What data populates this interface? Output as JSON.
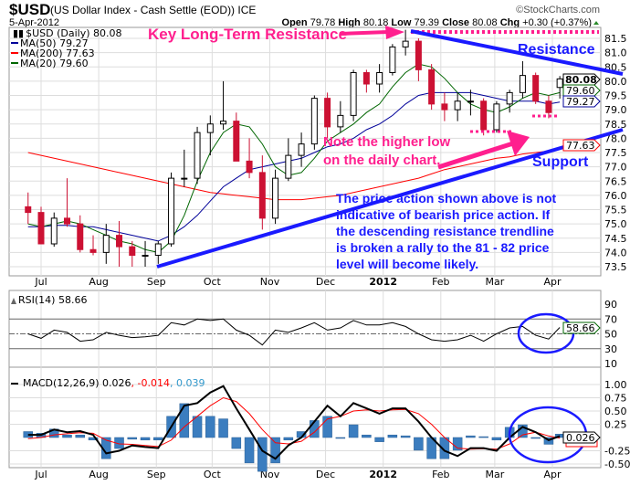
{
  "header": {
    "symbol": "$USD",
    "name": "(US Dollar Index - Cash Settle (EOD)) ICE",
    "date": "5-Apr-2012",
    "watermark": "©StockCharts.com",
    "open_label": "Open",
    "open": "79.78",
    "high_label": "High",
    "high": "80.18",
    "low_label": "Low",
    "low": "79.39",
    "close_label": "Close",
    "close": "80.08",
    "chg_label": "Chg",
    "chg": "+0.30 (+0.37%)"
  },
  "legend": {
    "price": "$USD (Daily) 80.08",
    "ma50": "MA(50) 79.27",
    "ma200": "MA(200) 77.63",
    "ma20": "MA(20) 79.60",
    "rsi": "RSI(14) 58.66",
    "macd_main": "MACD(12,26,9) 0.026",
    "macd_signal": ", -0.014",
    "macd_hist": ", 0.039"
  },
  "value_tags": {
    "price": "80.08",
    "ma20": "79.60",
    "ma50": "79.27",
    "ma200": "77.63",
    "rsi": "58.66",
    "macd": "0.026"
  },
  "annotations": {
    "key_resistance": "Key Long-Term Resistance",
    "resistance": "Resistance",
    "support": "Support",
    "higher_low_1": "Note the higher low",
    "higher_low_2": "on the daily chart.",
    "paragraph": [
      "The price action shown above is not",
      "indicative of bearish price action. If",
      "the descending resistance trendline",
      "is broken a rally to the 81 - 82 price",
      "level will become likely."
    ]
  },
  "colors": {
    "up": "#000000",
    "down": "#cc1133",
    "ma50": "#000099",
    "ma200": "#ff0000",
    "ma20": "#006600",
    "hist": "#3b7dbf",
    "annotation_pink": "#ff1f8e",
    "annotation_blue": "#1a1aff"
  },
  "chart_data": {
    "type": "candlestick",
    "x_axis": {
      "ticks": [
        "Jul",
        "Aug",
        "Sep",
        "Oct",
        "Nov",
        "Dec",
        "2012",
        "Feb",
        "Mar",
        "Apr"
      ],
      "range": [
        "2011-06-14",
        "2012-04-05"
      ]
    },
    "price_axis": {
      "ticks": [
        "81.5",
        "81.0",
        "80.5",
        "80.0",
        "79.5",
        "79.0",
        "78.5",
        "78.0",
        "77.5",
        "77.0",
        "76.5",
        "76.0",
        "75.5",
        "75.0",
        "74.5",
        "74.0",
        "73.5"
      ],
      "range": [
        73.3,
        81.9
      ]
    },
    "rsi_axis": {
      "ticks": [
        "90",
        "70",
        "50",
        "30",
        "10"
      ],
      "range": [
        0,
        100
      ]
    },
    "macd_axis": {
      "ticks": [
        "1.00",
        "0.75",
        "0.50",
        "0.25",
        "-0.25",
        "-0.50"
      ],
      "range": [
        -0.6,
        1.2
      ]
    },
    "grid": true,
    "ohlc": [
      [
        "2011-06-24",
        75.6,
        76.1,
        75.0,
        75.4
      ],
      [
        "2011-07-01",
        75.4,
        75.6,
        74.3,
        74.3
      ],
      [
        "2011-07-08",
        74.3,
        75.4,
        74.2,
        75.2
      ],
      [
        "2011-07-15",
        75.2,
        76.6,
        74.9,
        75.0
      ],
      [
        "2011-07-22",
        75.0,
        75.3,
        74.0,
        74.1
      ],
      [
        "2011-07-29",
        74.1,
        74.6,
        73.9,
        74.0
      ],
      [
        "2011-08-05",
        74.0,
        75.0,
        73.6,
        74.6
      ],
      [
        "2011-08-12",
        74.6,
        75.1,
        73.5,
        74.2
      ],
      [
        "2011-08-19",
        74.2,
        74.4,
        73.5,
        73.9
      ],
      [
        "2011-08-26",
        73.9,
        74.4,
        73.5,
        73.9
      ],
      [
        "2011-09-02",
        73.9,
        74.4,
        73.6,
        74.3
      ],
      [
        "2011-09-09",
        74.3,
        76.8,
        74.2,
        76.6
      ],
      [
        "2011-09-16",
        76.6,
        77.6,
        76.3,
        76.6
      ],
      [
        "2011-09-23",
        76.6,
        78.4,
        76.4,
        78.2
      ],
      [
        "2011-09-30",
        78.2,
        78.8,
        77.4,
        78.5
      ],
      [
        "2011-10-07",
        78.5,
        80.0,
        78.3,
        78.6
      ],
      [
        "2011-10-14",
        78.6,
        78.9,
        77.2,
        77.2
      ],
      [
        "2011-10-21",
        77.2,
        78.0,
        76.6,
        76.8
      ],
      [
        "2011-10-28",
        76.8,
        77.4,
        74.8,
        75.2
      ],
      [
        "2011-11-04",
        75.2,
        76.9,
        75.0,
        76.6
      ],
      [
        "2011-11-11",
        76.6,
        78.0,
        76.5,
        77.4
      ],
      [
        "2011-11-18",
        77.4,
        78.2,
        77.0,
        77.8
      ],
      [
        "2011-11-25",
        77.8,
        79.5,
        77.6,
        79.4
      ],
      [
        "2011-12-02",
        79.4,
        79.6,
        78.0,
        78.4
      ],
      [
        "2011-12-09",
        78.4,
        79.3,
        78.2,
        78.8
      ],
      [
        "2011-12-16",
        78.8,
        80.4,
        78.6,
        80.3
      ],
      [
        "2011-12-23",
        80.3,
        80.4,
        79.6,
        79.9
      ],
      [
        "2011-12-30",
        79.9,
        80.6,
        79.6,
        80.3
      ],
      [
        "2012-01-06",
        80.3,
        81.3,
        80.2,
        81.2
      ],
      [
        "2012-01-13",
        81.2,
        81.8,
        80.9,
        81.4
      ],
      [
        "2012-01-20",
        81.4,
        81.5,
        80.0,
        80.4
      ],
      [
        "2012-01-27",
        80.4,
        80.6,
        79.0,
        79.2
      ],
      [
        "2012-02-03",
        79.2,
        79.6,
        78.6,
        79.0
      ],
      [
        "2012-02-10",
        79.0,
        79.6,
        78.6,
        79.3
      ],
      [
        "2012-02-17",
        79.3,
        79.7,
        78.8,
        79.3
      ],
      [
        "2012-02-24",
        79.3,
        79.4,
        78.1,
        78.3
      ],
      [
        "2012-03-02",
        78.3,
        79.3,
        78.2,
        79.2
      ],
      [
        "2012-03-09",
        79.2,
        79.7,
        78.9,
        79.6
      ],
      [
        "2012-03-16",
        79.6,
        80.7,
        79.4,
        80.2
      ],
      [
        "2012-03-23",
        80.2,
        80.3,
        79.2,
        79.3
      ],
      [
        "2012-03-30",
        79.3,
        79.5,
        78.7,
        78.9
      ],
      [
        "2012-04-05",
        79.78,
        80.18,
        79.39,
        80.08
      ]
    ],
    "series": [
      {
        "name": "MA(50)",
        "values": [
          74.9,
          74.9,
          74.95,
          74.95,
          74.9,
          74.9,
          74.8,
          74.7,
          74.6,
          74.5,
          74.4,
          74.6,
          74.9,
          75.3,
          75.8,
          76.3,
          76.6,
          76.9,
          77.0,
          77.1,
          77.2,
          77.3,
          77.5,
          77.7,
          77.8,
          78.0,
          78.3,
          78.5,
          78.8,
          79.2,
          79.5,
          79.6,
          79.6,
          79.6,
          79.6,
          79.5,
          79.4,
          79.3,
          79.3,
          79.3,
          79.2,
          79.27
        ]
      },
      {
        "name": "MA(200)",
        "values": [
          77.5,
          77.4,
          77.3,
          77.2,
          77.1,
          77.0,
          76.9,
          76.8,
          76.7,
          76.6,
          76.5,
          76.4,
          76.3,
          76.2,
          76.1,
          76.05,
          76.0,
          75.95,
          75.9,
          75.85,
          75.85,
          75.85,
          75.9,
          75.95,
          76.0,
          76.1,
          76.2,
          76.3,
          76.4,
          76.5,
          76.6,
          76.75,
          76.9,
          77.0,
          77.1,
          77.2,
          77.3,
          77.35,
          77.45,
          77.5,
          77.55,
          77.63
        ]
      },
      {
        "name": "MA(20)",
        "values": [
          75.0,
          74.9,
          75.0,
          75.1,
          75.0,
          74.8,
          74.6,
          74.4,
          74.3,
          74.1,
          74.0,
          74.4,
          75.3,
          76.5,
          77.5,
          78.2,
          78.5,
          78.4,
          77.8,
          77.0,
          76.7,
          76.8,
          77.3,
          77.9,
          78.2,
          78.5,
          78.9,
          79.2,
          79.8,
          80.3,
          80.6,
          80.5,
          80.1,
          79.6,
          79.2,
          79.0,
          78.9,
          79.1,
          79.4,
          79.6,
          79.5,
          79.6
        ]
      },
      {
        "name": "RSI(14)",
        "values": [
          50,
          44,
          55,
          52,
          40,
          42,
          52,
          48,
          45,
          46,
          48,
          65,
          62,
          70,
          68,
          70,
          55,
          48,
          35,
          55,
          52,
          58,
          65,
          55,
          58,
          68,
          62,
          62,
          65,
          60,
          50,
          42,
          40,
          42,
          48,
          40,
          50,
          58,
          60,
          48,
          43,
          58.66
        ]
      },
      {
        "name": "MACD(12,26,9)",
        "values": [
          0.05,
          0.05,
          0.15,
          0.1,
          0.12,
          0.05,
          -0.3,
          -0.25,
          -0.15,
          -0.18,
          -0.2,
          0.2,
          0.6,
          0.65,
          0.85,
          0.97,
          0.55,
          0.15,
          -0.25,
          -0.4,
          -0.15,
          0.0,
          0.3,
          0.6,
          0.4,
          0.65,
          0.55,
          0.45,
          0.55,
          0.55,
          0.3,
          0.0,
          -0.25,
          -0.35,
          -0.2,
          -0.2,
          -0.25,
          0.0,
          0.2,
          0.1,
          -0.05,
          0.026
        ]
      },
      {
        "name": "Signal",
        "values": [
          -0.02,
          0.0,
          0.05,
          0.07,
          0.09,
          0.08,
          -0.05,
          -0.12,
          -0.13,
          -0.15,
          -0.17,
          -0.05,
          0.2,
          0.4,
          0.6,
          0.75,
          0.68,
          0.45,
          0.15,
          -0.1,
          -0.12,
          -0.07,
          0.1,
          0.35,
          0.4,
          0.5,
          0.52,
          0.5,
          0.52,
          0.53,
          0.45,
          0.25,
          0.0,
          -0.2,
          -0.22,
          -0.21,
          -0.22,
          -0.12,
          0.05,
          0.1,
          0.03,
          -0.014
        ]
      }
    ]
  }
}
